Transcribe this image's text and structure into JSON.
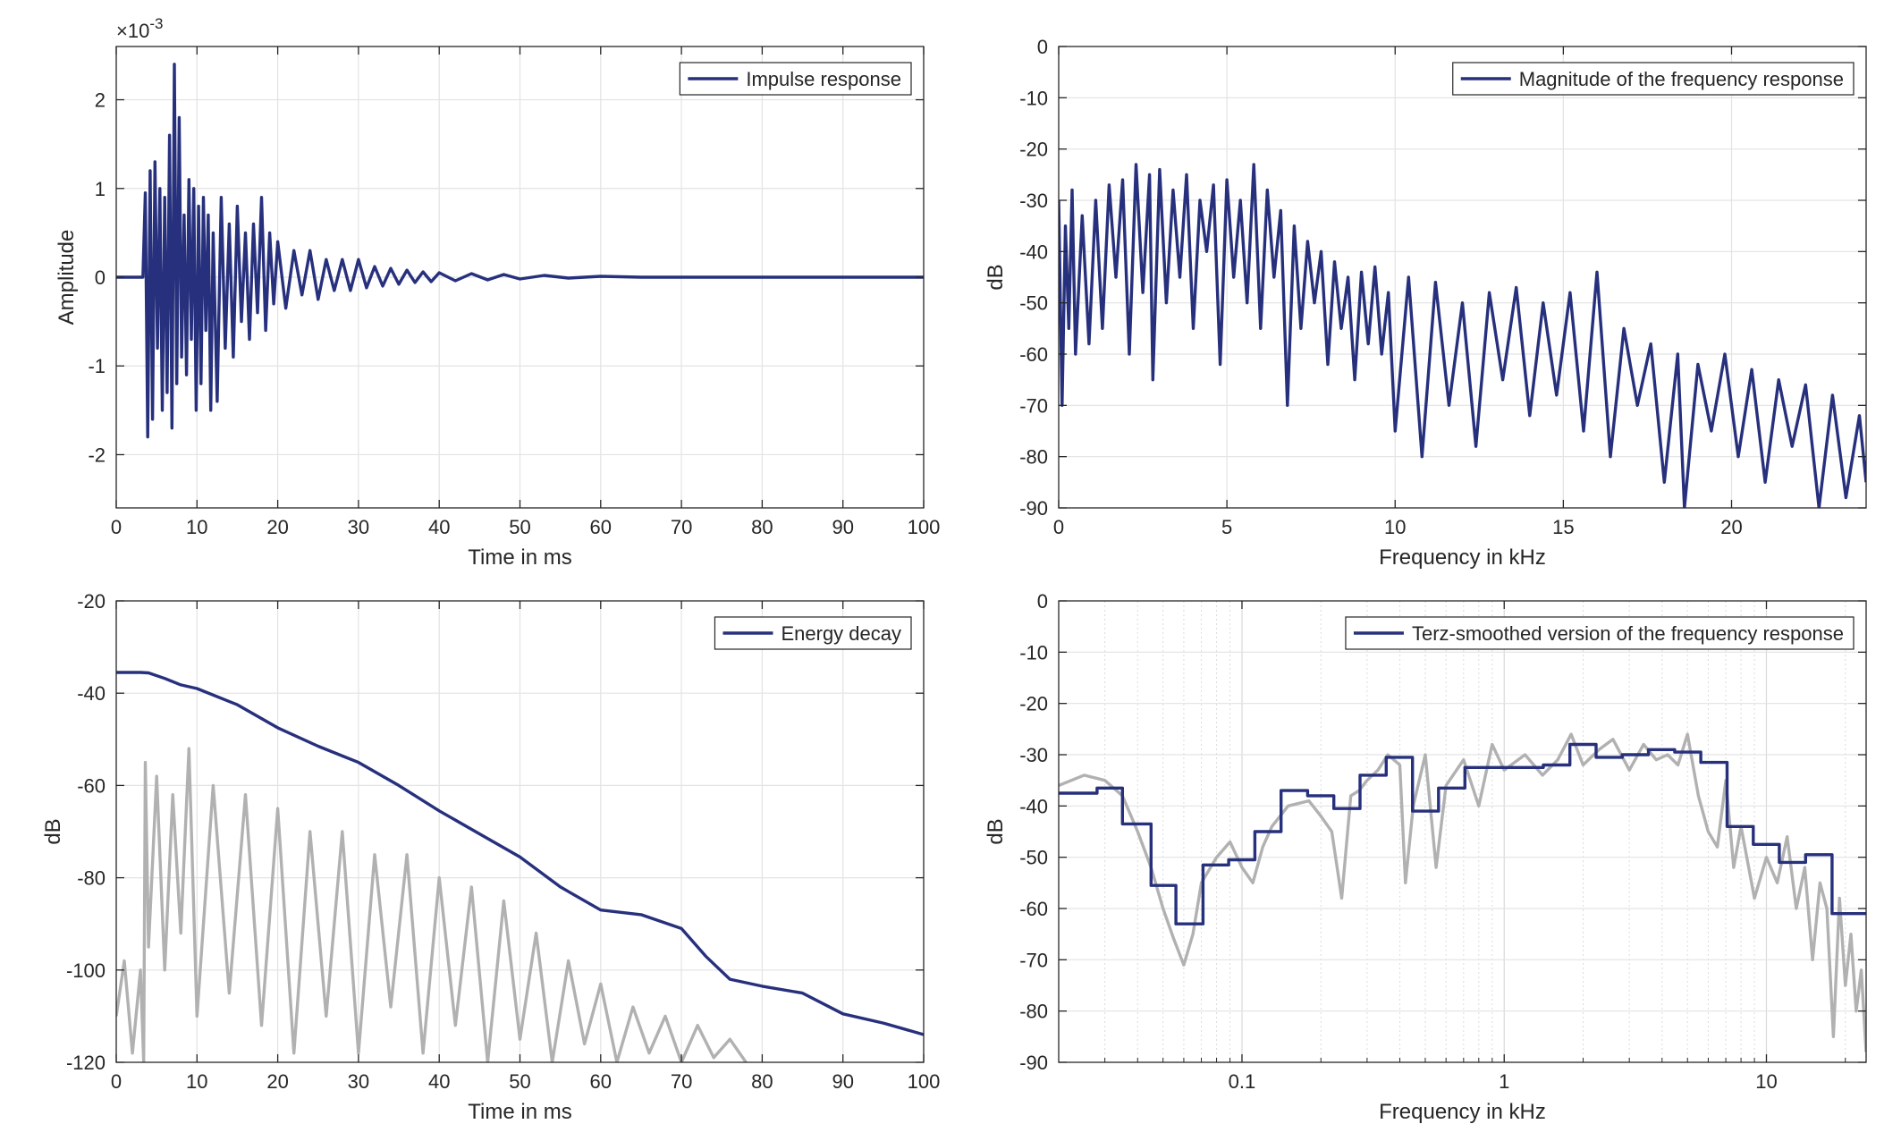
{
  "chart_data": [
    {
      "id": "impulse",
      "type": "line",
      "xlabel": "Time in ms",
      "ylabel": "Amplitude",
      "y_exponent_label": "×10^-3",
      "y_exponent_base": "×10",
      "y_exponent_power": "-3",
      "xlim": [
        0,
        100
      ],
      "ylim": [
        -2.6,
        2.6
      ],
      "xticks": [
        0,
        10,
        20,
        30,
        40,
        50,
        60,
        70,
        80,
        90,
        100
      ],
      "yticks": [
        -2,
        -1,
        0,
        1,
        2
      ],
      "grid": true,
      "legend_position": "top-right",
      "series": [
        {
          "name": "Impulse response",
          "color": "#27307c",
          "x": [
            0,
            3.3,
            3.6,
            3.9,
            4.2,
            4.5,
            4.8,
            5.1,
            5.4,
            5.7,
            6.0,
            6.3,
            6.6,
            6.9,
            7.2,
            7.5,
            7.8,
            8.1,
            8.4,
            8.7,
            9.0,
            9.3,
            9.6,
            9.9,
            10.2,
            10.5,
            10.8,
            11.1,
            11.4,
            11.7,
            12.0,
            12.5,
            13.0,
            13.5,
            14.0,
            14.5,
            15.0,
            15.5,
            16.0,
            16.5,
            17.0,
            17.5,
            18.0,
            18.5,
            19.0,
            19.5,
            20.0,
            21,
            22,
            23,
            24,
            25,
            26,
            27,
            28,
            29,
            30,
            31,
            32,
            33,
            34,
            35,
            36,
            37,
            38,
            39,
            40,
            42,
            44,
            46,
            48,
            50,
            53,
            56,
            60,
            65,
            70,
            80,
            90,
            100
          ],
          "y": [
            0,
            0,
            0.95,
            -1.8,
            1.2,
            -1.6,
            1.3,
            -0.8,
            1.0,
            -1.5,
            0.9,
            -1.3,
            1.6,
            -1.7,
            2.4,
            -1.2,
            1.8,
            -0.9,
            0.7,
            -1.1,
            1.1,
            -0.7,
            1.0,
            -1.5,
            0.8,
            -1.2,
            0.9,
            -0.6,
            0.7,
            -1.5,
            0.5,
            -1.4,
            0.9,
            -0.8,
            0.6,
            -0.9,
            0.8,
            -0.5,
            0.5,
            -0.7,
            0.6,
            -0.4,
            0.9,
            -0.6,
            0.5,
            -0.3,
            0.4,
            -0.35,
            0.3,
            -0.2,
            0.3,
            -0.25,
            0.2,
            -0.15,
            0.2,
            -0.15,
            0.2,
            -0.12,
            0.12,
            -0.1,
            0.1,
            -0.08,
            0.08,
            -0.06,
            0.06,
            -0.05,
            0.05,
            -0.04,
            0.04,
            -0.03,
            0.03,
            -0.02,
            0.02,
            -0.01,
            0.01,
            0,
            0,
            0,
            0,
            0
          ]
        }
      ]
    },
    {
      "id": "magnitude",
      "type": "line",
      "xlabel": "Frequency in kHz",
      "ylabel": "dB",
      "xlim": [
        0,
        24
      ],
      "ylim": [
        -90,
        0
      ],
      "xticks": [
        0,
        5,
        10,
        15,
        20
      ],
      "yticks": [
        0,
        -10,
        -20,
        -30,
        -40,
        -50,
        -60,
        -70,
        -80,
        -90
      ],
      "grid": true,
      "legend_position": "top-right",
      "series": [
        {
          "name": "Magnitude of the frequency response",
          "color": "#27307c",
          "x": [
            0,
            0.1,
            0.2,
            0.3,
            0.4,
            0.5,
            0.7,
            0.9,
            1.1,
            1.3,
            1.5,
            1.7,
            1.9,
            2.1,
            2.3,
            2.5,
            2.7,
            2.8,
            3.0,
            3.2,
            3.4,
            3.6,
            3.8,
            4.0,
            4.2,
            4.4,
            4.6,
            4.8,
            5.0,
            5.2,
            5.4,
            5.6,
            5.8,
            6.0,
            6.2,
            6.4,
            6.6,
            6.8,
            7.0,
            7.2,
            7.4,
            7.6,
            7.8,
            8.0,
            8.2,
            8.4,
            8.6,
            8.8,
            9.0,
            9.2,
            9.4,
            9.6,
            9.8,
            10.0,
            10.4,
            10.8,
            11.2,
            11.6,
            12.0,
            12.4,
            12.8,
            13.2,
            13.6,
            14.0,
            14.4,
            14.8,
            15.2,
            15.6,
            16.0,
            16.4,
            16.8,
            17.2,
            17.6,
            18.0,
            18.4,
            18.6,
            19.0,
            19.4,
            19.8,
            20.2,
            20.6,
            21.0,
            21.4,
            21.8,
            22.2,
            22.6,
            23.0,
            23.4,
            23.8,
            24.0
          ],
          "y": [
            -30,
            -70,
            -35,
            -55,
            -28,
            -60,
            -33,
            -58,
            -30,
            -55,
            -27,
            -45,
            -26,
            -60,
            -23,
            -48,
            -25,
            -65,
            -24,
            -50,
            -28,
            -45,
            -25,
            -55,
            -30,
            -40,
            -27,
            -62,
            -26,
            -45,
            -30,
            -50,
            -23,
            -55,
            -28,
            -45,
            -32,
            -70,
            -35,
            -55,
            -38,
            -50,
            -40,
            -62,
            -42,
            -55,
            -45,
            -65,
            -44,
            -58,
            -43,
            -60,
            -48,
            -75,
            -45,
            -80,
            -46,
            -70,
            -50,
            -78,
            -48,
            -65,
            -47,
            -72,
            -50,
            -68,
            -48,
            -75,
            -44,
            -80,
            -55,
            -70,
            -58,
            -85,
            -60,
            -90,
            -62,
            -75,
            -60,
            -80,
            -63,
            -85,
            -65,
            -78,
            -66,
            -90,
            -68,
            -88,
            -72,
            -85
          ]
        }
      ]
    },
    {
      "id": "energy_decay",
      "type": "line",
      "xlabel": "Time in ms",
      "ylabel": "dB",
      "xlim": [
        0,
        100
      ],
      "ylim": [
        -120,
        -20
      ],
      "xticks": [
        0,
        10,
        20,
        30,
        40,
        50,
        60,
        70,
        80,
        90,
        100
      ],
      "yticks": [
        -20,
        -40,
        -60,
        -80,
        -100,
        -120
      ],
      "grid": true,
      "legend_position": "top-right",
      "series": [
        {
          "name": "Energy decay",
          "color": "#27307c",
          "x": [
            0,
            3,
            4,
            6,
            8,
            10,
            15,
            20,
            25,
            30,
            35,
            40,
            45,
            50,
            55,
            60,
            65,
            70,
            73,
            76,
            80,
            85,
            90,
            95,
            100
          ],
          "y": [
            -35.5,
            -35.5,
            -35.6,
            -36.8,
            -38.2,
            -39,
            -42.5,
            -47.5,
            -51.5,
            -55,
            -60,
            -65.5,
            -70.5,
            -75.5,
            -82,
            -87,
            -88,
            -91,
            -97,
            -102,
            -103.5,
            -105,
            -109.5,
            -111.5,
            -114
          ]
        },
        {
          "name": "",
          "color": "#b1b1b1",
          "x": [
            0,
            1,
            2,
            3,
            3.4,
            3.6,
            4,
            5,
            6,
            7,
            8,
            9,
            10,
            12,
            14,
            16,
            18,
            20,
            22,
            24,
            26,
            28,
            30,
            32,
            34,
            36,
            38,
            40,
            42,
            44,
            46,
            48,
            50,
            52,
            54,
            56,
            58,
            60,
            62,
            64,
            66,
            68,
            70,
            72,
            74,
            76,
            78
          ],
          "y": [
            -110,
            -98,
            -118,
            -100,
            -120,
            -55,
            -95,
            -58,
            -100,
            -62,
            -92,
            -52,
            -110,
            -60,
            -105,
            -62,
            -112,
            -65,
            -118,
            -70,
            -110,
            -70,
            -118,
            -75,
            -108,
            -75,
            -118,
            -80,
            -112,
            -82,
            -120,
            -85,
            -115,
            -92,
            -120,
            -98,
            -116,
            -103,
            -120,
            -108,
            -118,
            -110,
            -120,
            -112,
            -119,
            -115,
            -120
          ]
        }
      ]
    },
    {
      "id": "terz",
      "type": "line",
      "xlabel": "Frequency in kHz",
      "ylabel": "dB",
      "xscale": "log",
      "xlim": [
        0.02,
        24
      ],
      "ylim": [
        -90,
        0
      ],
      "xticks": [
        0.1,
        1,
        10
      ],
      "xtick_labels": [
        "0.1",
        "1",
        "10"
      ],
      "yticks": [
        0,
        -10,
        -20,
        -30,
        -40,
        -50,
        -60,
        -70,
        -80,
        -90
      ],
      "grid": true,
      "legend_position": "top-right",
      "series": [
        {
          "name": "Terz-smoothed version of the frequency response",
          "color": "#27307c",
          "step": true,
          "edges": [
            0.02,
            0.028,
            0.035,
            0.045,
            0.056,
            0.071,
            0.089,
            0.112,
            0.141,
            0.178,
            0.224,
            0.282,
            0.355,
            0.447,
            0.562,
            0.708,
            0.891,
            1.12,
            1.41,
            1.78,
            2.24,
            2.82,
            3.55,
            4.47,
            5.62,
            7.08,
            8.91,
            11.2,
            14.1,
            17.8,
            24
          ],
          "values": [
            -37.5,
            -36.5,
            -43.5,
            -55.5,
            -63,
            -51.5,
            -50.5,
            -45,
            -37,
            -38,
            -40.5,
            -34,
            -30.5,
            -41,
            -36.5,
            -32.5,
            -32.5,
            -32.5,
            -32,
            -28,
            -30.5,
            -30,
            -29,
            -29.5,
            -31.5,
            -44,
            -47.5,
            -51,
            -49.5,
            -61
          ]
        },
        {
          "name": "",
          "color": "#b1b1b1",
          "x": [
            0.02,
            0.025,
            0.03,
            0.035,
            0.04,
            0.045,
            0.05,
            0.055,
            0.06,
            0.065,
            0.07,
            0.08,
            0.09,
            0.1,
            0.11,
            0.12,
            0.13,
            0.15,
            0.18,
            0.2,
            0.22,
            0.24,
            0.26,
            0.28,
            0.3,
            0.33,
            0.36,
            0.4,
            0.42,
            0.45,
            0.5,
            0.55,
            0.6,
            0.7,
            0.8,
            0.9,
            1.0,
            1.2,
            1.4,
            1.6,
            1.8,
            2.0,
            2.3,
            2.6,
            3.0,
            3.4,
            3.8,
            4.2,
            4.6,
            5.0,
            5.5,
            6.0,
            6.5,
            7.0,
            7.5,
            8.0,
            9.0,
            10.0,
            11.0,
            12.0,
            13.0,
            14.0,
            15.0,
            16.0,
            17.0,
            18.0,
            19.0,
            20.0,
            21.0,
            22.0,
            23.0,
            24.0
          ],
          "y": [
            -36,
            -34,
            -35,
            -38,
            -45,
            -52,
            -60,
            -66,
            -71,
            -65,
            -55,
            -50,
            -47,
            -52,
            -55,
            -48,
            -44,
            -40,
            -39,
            -42,
            -45,
            -58,
            -38,
            -37,
            -35,
            -33,
            -30,
            -32,
            -55,
            -40,
            -30,
            -52,
            -36,
            -31,
            -40,
            -28,
            -33,
            -30,
            -34,
            -31,
            -26,
            -32,
            -29,
            -27,
            -33,
            -28,
            -31,
            -30,
            -32,
            -26,
            -38,
            -45,
            -48,
            -35,
            -52,
            -44,
            -58,
            -50,
            -55,
            -46,
            -60,
            -52,
            -70,
            -55,
            -60,
            -85,
            -58,
            -75,
            -65,
            -80,
            -72,
            -88
          ]
        }
      ]
    }
  ]
}
